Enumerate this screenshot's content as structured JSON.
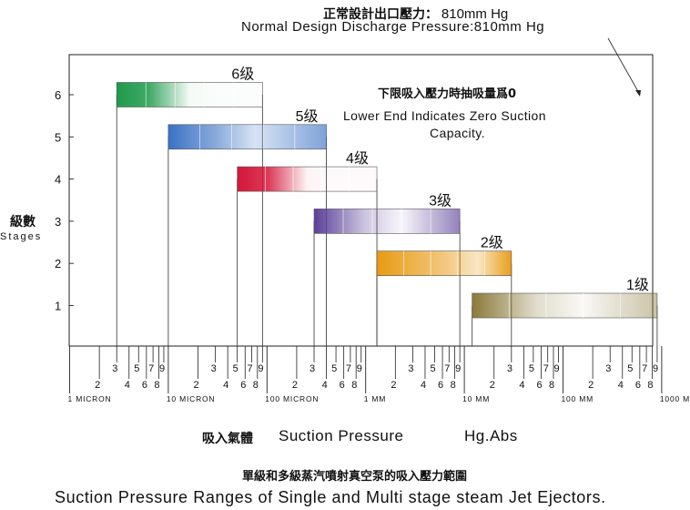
{
  "header": {
    "design_label_cn": "正常設計出口壓力：",
    "design_value": "810mm Hg",
    "design_label_en": "Normal Design Discharge Pressure:810mm Hg"
  },
  "note": {
    "cn": "下限吸入壓力時抽吸量爲0",
    "en_line1": "Lower End Indicates Zero Suction",
    "en_line2": "Capacity."
  },
  "y_title": {
    "cn": "級數",
    "en": "Stages"
  },
  "x_title": {
    "cn": "吸入氣體",
    "en": "Suction Pressure",
    "unit": "Hg.Abs"
  },
  "caption": {
    "cn": "單級和多級蒸汽噴射真空泵的吸入壓力範圍",
    "en": "Suction Pressure Ranges of Single and Multi stage steam Jet Ejectors."
  },
  "chart_data": {
    "type": "bar",
    "orientation": "horizontal-range",
    "x_scale": "log",
    "x_unit": "mm Hg abs",
    "xlim": [
      0.001,
      1000
    ],
    "ylim": [
      0,
      7
    ],
    "y_ticks": [
      "1",
      "2",
      "3",
      "4",
      "5",
      "6"
    ],
    "x_decade_labels": [
      {
        "value": 0.001,
        "label": "1 MICRON"
      },
      {
        "value": 0.01,
        "label": "10 MICRON"
      },
      {
        "value": 0.1,
        "label": "100 MICRON"
      },
      {
        "value": 1,
        "label": "1 MM"
      },
      {
        "value": 10,
        "label": "10 MM"
      },
      {
        "value": 100,
        "label": "100 MM"
      },
      {
        "value": 1000,
        "label": "1000 MM"
      }
    ],
    "x_minor_labels": [
      "2",
      "3",
      "4",
      "5",
      "6",
      "7",
      "8",
      "9"
    ],
    "design_discharge_pressure": 810,
    "series": [
      {
        "label": "6级",
        "stages": 6,
        "range": [
          0.003,
          0.09
        ],
        "color": "#1f9a4c"
      },
      {
        "label": "5级",
        "stages": 5,
        "range": [
          0.01,
          0.4
        ],
        "color": "#3a72c4"
      },
      {
        "label": "4级",
        "stages": 4,
        "range": [
          0.05,
          1.3
        ],
        "color": "#d4163a"
      },
      {
        "label": "3级",
        "stages": 3,
        "range": [
          0.3,
          9
        ],
        "color": "#5a3f98"
      },
      {
        "label": "2级",
        "stages": 2,
        "range": [
          1.3,
          30
        ],
        "color": "#e89a12"
      },
      {
        "label": "1级",
        "stages": 1,
        "range": [
          12,
          900
        ],
        "color": "#8a7a3a"
      }
    ]
  }
}
